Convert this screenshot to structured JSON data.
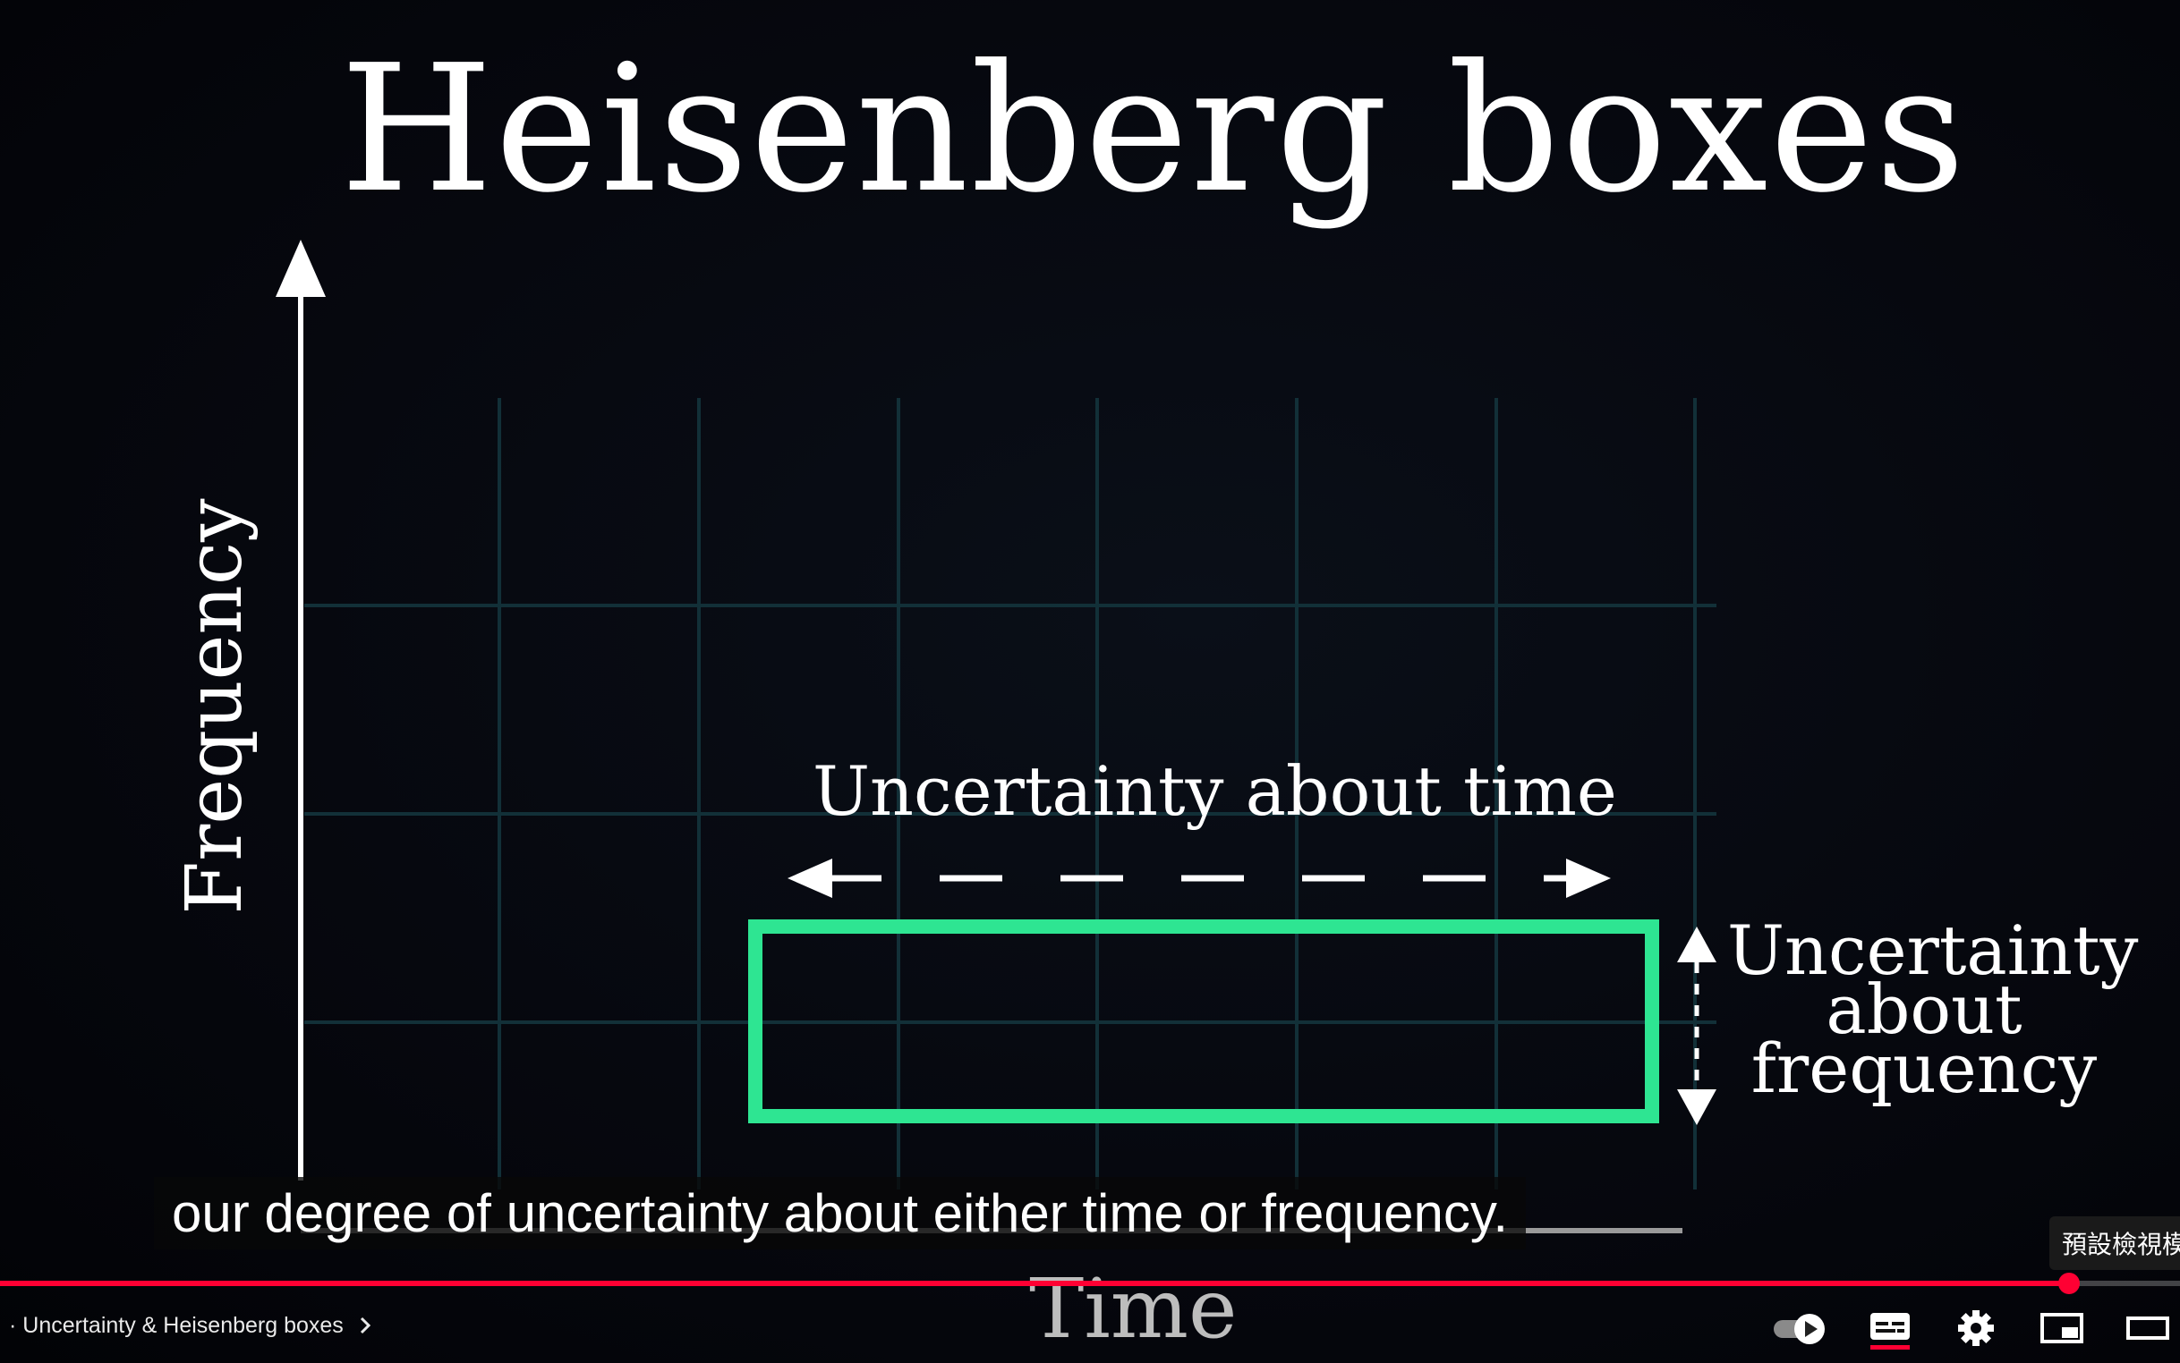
{
  "video": {
    "title": "Heisenberg boxes",
    "y_axis_label": "Frequency",
    "x_axis_label": "Time",
    "time_uncertainty_label": "Uncertainty about time",
    "frequency_uncertainty_lines": [
      "Uncertainty",
      "about",
      "frequency"
    ],
    "box_color": "#2ee592",
    "grid_color": "#123038"
  },
  "caption": "our degree of uncertainty about either time or frequency.",
  "tooltip": "預設檢視模",
  "player": {
    "chapter_label": "Uncertainty & Heisenberg boxes",
    "chapter_prefix": "·",
    "chapter_chevron": "chevron-right-icon",
    "progress_fraction": 0.949,
    "accent_color": "#ff0033",
    "controls": [
      {
        "name": "autoplay-toggle",
        "icon": "autoplay-toggle-icon"
      },
      {
        "name": "subtitles-button",
        "icon": "subtitles-icon"
      },
      {
        "name": "settings-button",
        "icon": "gear-icon"
      },
      {
        "name": "miniplayer-button",
        "icon": "miniplayer-icon"
      },
      {
        "name": "theater-mode-button",
        "icon": "theater-icon"
      }
    ]
  }
}
